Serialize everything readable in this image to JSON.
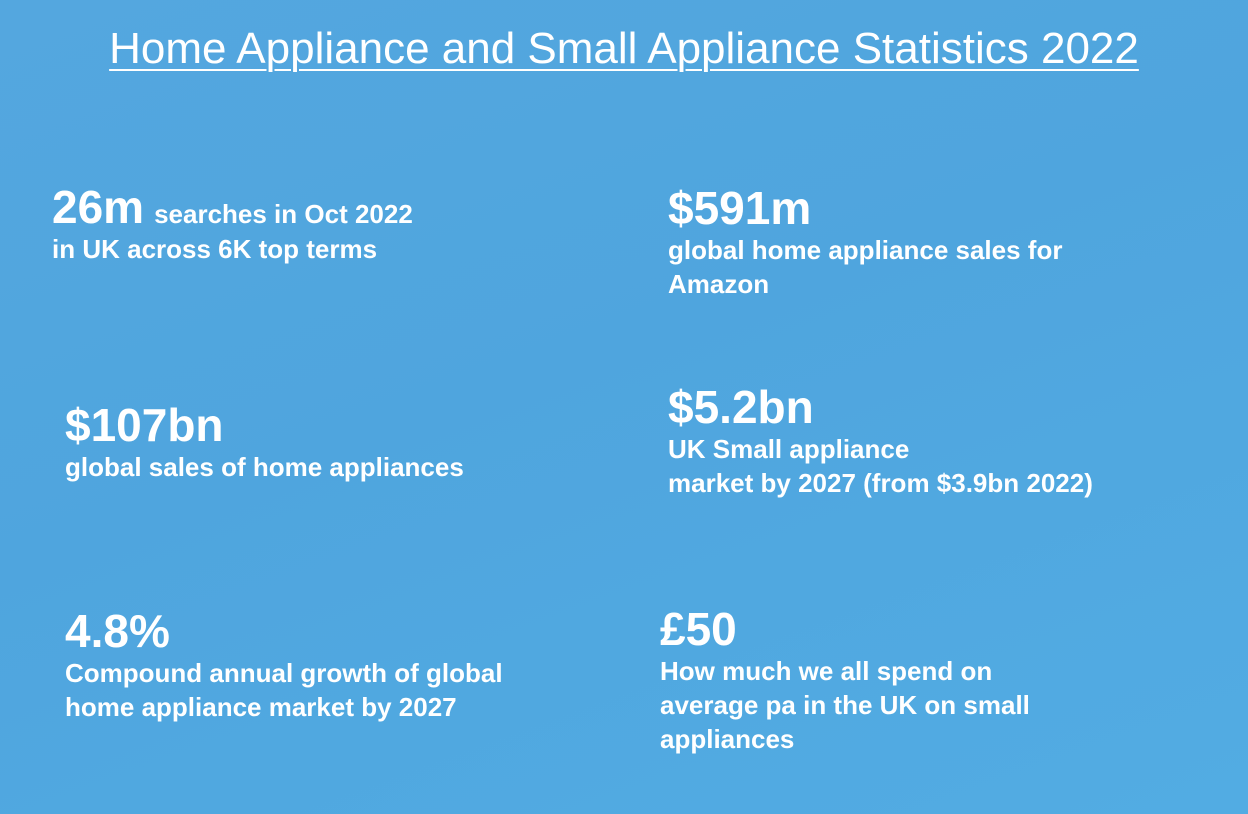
{
  "title": "Home Appliance and Small Appliance Statistics 2022",
  "stats": [
    {
      "value": "26m",
      "inline": "searches in Oct 2022",
      "lines": [
        "in UK across 6K top terms"
      ]
    },
    {
      "value": "$591m",
      "lines": [
        "global home appliance sales for",
        "Amazon"
      ]
    },
    {
      "value": "$107bn",
      "lines": [
        "global sales of home appliances"
      ]
    },
    {
      "value": "$5.2bn",
      "lines": [
        "UK Small appliance",
        "market by 2027 (from $3.9bn 2022)"
      ]
    },
    {
      "value": "4.8%",
      "lines": [
        "Compound annual growth of global",
        "home appliance market by 2027"
      ]
    },
    {
      "value": "£50",
      "lines": [
        "How much we all spend on",
        "average pa in the UK on small",
        "appliances"
      ]
    }
  ]
}
